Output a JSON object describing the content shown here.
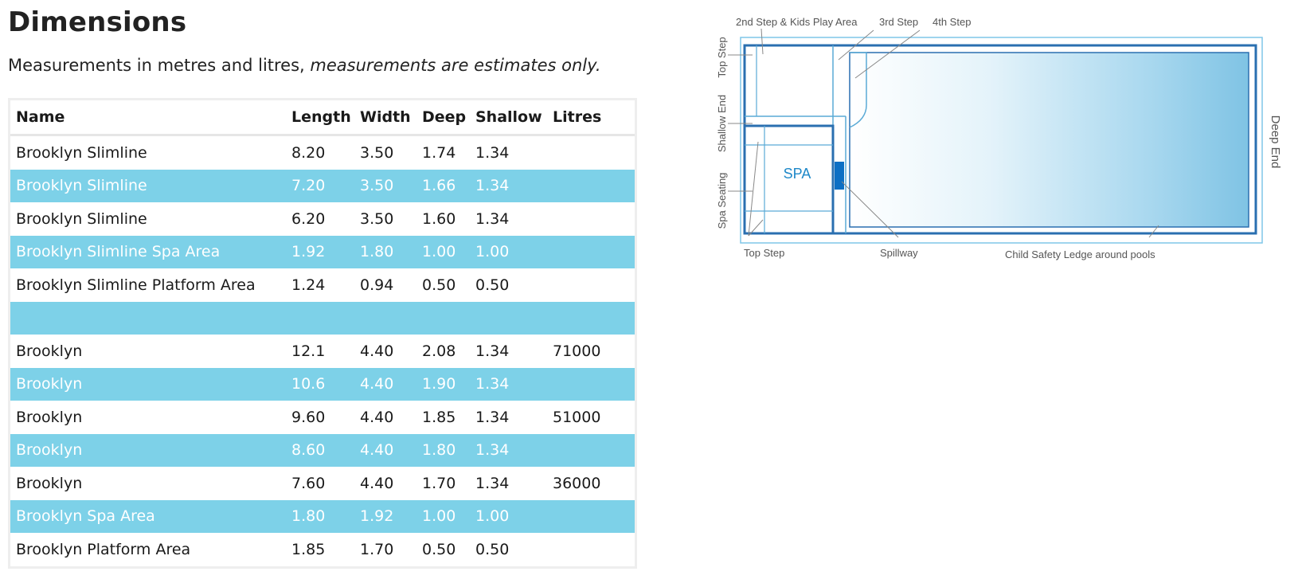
{
  "page": {
    "title": "Dimensions",
    "subtitle_plain": "Measurements in metres and litres, ",
    "subtitle_italic": "measurements are estimates only."
  },
  "table": {
    "headers": {
      "name": "Name",
      "length": "Length",
      "width": "Width",
      "deep": "Deep",
      "shallow": "Shallow",
      "litres": "Litres"
    },
    "rows": [
      {
        "name": "Brooklyn Slimline",
        "length": "8.20",
        "width": "3.50",
        "deep": "1.74",
        "shallow": "1.34",
        "litres": ""
      },
      {
        "name": "Brooklyn Slimline",
        "length": "7.20",
        "width": "3.50",
        "deep": "1.66",
        "shallow": "1.34",
        "litres": ""
      },
      {
        "name": "Brooklyn Slimline",
        "length": "6.20",
        "width": "3.50",
        "deep": "1.60",
        "shallow": "1.34",
        "litres": ""
      },
      {
        "name": "Brooklyn Slimline Spa Area",
        "length": "1.92",
        "width": "1.80",
        "deep": "1.00",
        "shallow": "1.00",
        "litres": ""
      },
      {
        "name": "Brooklyn Slimline Platform Area",
        "length": "1.24",
        "width": "0.94",
        "deep": "0.50",
        "shallow": "0.50",
        "litres": ""
      },
      {
        "name": "",
        "length": "",
        "width": "",
        "deep": "",
        "shallow": "",
        "litres": ""
      },
      {
        "name": "Brooklyn",
        "length": "12.1",
        "width": "4.40",
        "deep": "2.08",
        "shallow": "1.34",
        "litres": "71000"
      },
      {
        "name": "Brooklyn",
        "length": "10.6",
        "width": "4.40",
        "deep": "1.90",
        "shallow": "1.34",
        "litres": ""
      },
      {
        "name": "Brooklyn",
        "length": "9.60",
        "width": "4.40",
        "deep": "1.85",
        "shallow": "1.34",
        "litres": "51000"
      },
      {
        "name": "Brooklyn",
        "length": "8.60",
        "width": "4.40",
        "deep": "1.80",
        "shallow": "1.34",
        "litres": ""
      },
      {
        "name": "Brooklyn",
        "length": "7.60",
        "width": "4.40",
        "deep": "1.70",
        "shallow": "1.34",
        "litres": "36000"
      },
      {
        "name": "Brooklyn Spa Area",
        "length": "1.80",
        "width": "1.92",
        "deep": "1.00",
        "shallow": "1.00",
        "litres": ""
      },
      {
        "name": "Brooklyn Platform Area",
        "length": "1.85",
        "width": "1.70",
        "deep": "0.50",
        "shallow": "0.50",
        "litres": ""
      }
    ]
  },
  "diagram": {
    "labels": {
      "second_step": "2nd Step & Kids Play Area",
      "third_step": "3rd Step",
      "fourth_step": "4th Step",
      "top_step_left": "Top Step",
      "shallow_end": "Shallow End",
      "spa_seating": "Spa Seating",
      "spa": "SPA",
      "deep_end": "Deep End",
      "top_step_bottom": "Top Step",
      "spillway": "Spillway",
      "child_safety": "Child Safety Ledge around pools"
    }
  },
  "colors": {
    "row_highlight": "#7dd1e8",
    "pool_blue": "#2a6fb0",
    "pool_light": "#7fc3e4"
  }
}
